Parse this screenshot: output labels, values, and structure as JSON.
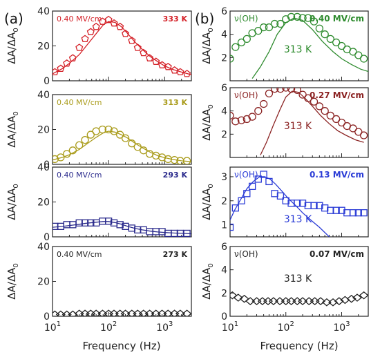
{
  "panel_labels": [
    "(a)",
    "(b)"
  ],
  "xlabel": "Frequency (Hz)",
  "ylabel_main": "ΔA/ΔA",
  "ylabel_sub": "0",
  "x_tick_labels": [
    {
      "base": "10",
      "exp": "1"
    },
    {
      "base": "10",
      "exp": "2"
    },
    {
      "base": "10",
      "exp": "3"
    }
  ],
  "chart_data": [
    {
      "type": "scatter",
      "column": "a",
      "row": 0,
      "marker": "pentagon",
      "color": "#d42027",
      "xscale": "log",
      "xlim": [
        10,
        3000
      ],
      "ylim": [
        0,
        40
      ],
      "yticks": [
        0,
        20,
        40
      ],
      "label_left": "0.40 MV/cm",
      "label_right": "333 K",
      "series": [
        {
          "kind": "points",
          "x": [
            11,
            14,
            18,
            23,
            30,
            38,
            48,
            60,
            78,
            100,
            125,
            160,
            200,
            260,
            330,
            420,
            540,
            700,
            900,
            1150,
            1500,
            1900,
            2500
          ],
          "y": [
            5,
            7,
            10,
            13,
            19,
            24,
            28,
            31,
            34,
            35,
            33,
            31,
            27,
            23,
            19,
            16,
            13,
            11,
            9,
            8,
            6,
            5,
            4
          ]
        },
        {
          "kind": "fit",
          "x": [
            10,
            15,
            20,
            30,
            40,
            60,
            80,
            100,
            130,
            170,
            220,
            300,
            400,
            550,
            750,
            1000,
            1400,
            2000,
            3000
          ],
          "y": [
            4,
            7,
            10,
            15,
            20,
            27,
            32,
            34,
            33.5,
            31,
            27,
            22,
            18,
            14,
            11,
            8.5,
            6.5,
            5,
            3.5
          ]
        }
      ]
    },
    {
      "type": "scatter",
      "column": "a",
      "row": 1,
      "marker": "circle",
      "color": "#a99b1a",
      "xscale": "log",
      "xlim": [
        10,
        3000
      ],
      "ylim": [
        0,
        40
      ],
      "yticks": [
        0,
        20,
        40
      ],
      "label_left": "0.40 MV/cm",
      "label_right": "313 K",
      "series": [
        {
          "kind": "points",
          "x": [
            11,
            14,
            18,
            23,
            30,
            38,
            48,
            60,
            78,
            100,
            125,
            160,
            200,
            260,
            330,
            420,
            540,
            700,
            900,
            1150,
            1500,
            1900,
            2500
          ],
          "y": [
            3,
            4,
            6,
            8,
            11,
            14,
            17,
            19,
            20,
            20,
            19,
            17,
            15,
            12,
            10,
            8,
            6,
            5,
            4,
            3,
            2.5,
            2,
            2
          ]
        },
        {
          "kind": "fit",
          "x": [
            10,
            15,
            20,
            30,
            40,
            60,
            80,
            100,
            130,
            170,
            220,
            300,
            400,
            550,
            750,
            1000,
            1400,
            2000,
            3000
          ],
          "y": [
            2.5,
            4,
            5.5,
            8.5,
            11.5,
            15.5,
            18,
            19,
            18.5,
            17,
            15,
            12,
            9.5,
            7,
            5,
            3.8,
            2.8,
            2,
            1.5
          ]
        }
      ]
    },
    {
      "type": "scatter",
      "column": "a",
      "row": 2,
      "marker": "square",
      "color": "#2a2a8c",
      "xscale": "log",
      "xlim": [
        10,
        3000
      ],
      "ylim": [
        0,
        40
      ],
      "yticks": [
        0,
        20,
        40
      ],
      "label_left": "0.40 MV/cm",
      "label_right": "293 K",
      "series": [
        {
          "kind": "points",
          "x": [
            11,
            14,
            18,
            23,
            30,
            38,
            48,
            60,
            78,
            100,
            125,
            160,
            200,
            260,
            330,
            420,
            540,
            700,
            900,
            1150,
            1500,
            1900,
            2500
          ],
          "y": [
            6,
            6,
            7,
            7,
            8,
            8,
            8,
            8,
            9,
            9,
            8,
            7,
            6,
            5,
            4,
            4,
            3,
            3,
            3,
            2,
            2,
            2,
            2
          ]
        },
        {
          "kind": "fit",
          "x": [
            10,
            15,
            20,
            30,
            40,
            60,
            80,
            100,
            130,
            170,
            220,
            300,
            400,
            550,
            750,
            1000,
            1400,
            2000,
            3000
          ],
          "y": [
            5.5,
            6,
            6.5,
            7.2,
            7.8,
            8.4,
            8.8,
            8.8,
            8.2,
            7.2,
            6,
            4.8,
            4,
            3.3,
            2.8,
            2.5,
            2.2,
            2,
            1.8
          ]
        }
      ]
    },
    {
      "type": "scatter",
      "column": "a",
      "row": 3,
      "marker": "diamond",
      "color": "#222222",
      "xscale": "log",
      "xlim": [
        10,
        3000
      ],
      "ylim": [
        0,
        40
      ],
      "yticks": [
        0,
        20,
        40
      ],
      "label_left": "0.40 MV/cm",
      "label_right": "273 K",
      "series": [
        {
          "kind": "points",
          "x": [
            11,
            14,
            18,
            23,
            30,
            38,
            48,
            60,
            78,
            100,
            125,
            160,
            200,
            260,
            330,
            420,
            540,
            700,
            900,
            1150,
            1500,
            1900,
            2500
          ],
          "y": [
            1,
            1,
            1,
            1,
            1.5,
            1.5,
            1.5,
            1.5,
            1.5,
            1.5,
            1.5,
            1.5,
            1.5,
            1.5,
            1.5,
            1.5,
            1.5,
            1.5,
            1.5,
            1.5,
            1.5,
            1.5,
            1.5
          ]
        }
      ]
    },
    {
      "type": "scatter",
      "column": "b",
      "row": 0,
      "marker": "circle",
      "color": "#2e8b2e",
      "xscale": "log",
      "xlim": [
        10,
        3000
      ],
      "ylim": [
        0,
        6
      ],
      "yticks": [
        2,
        4,
        6
      ],
      "label_left": "ν(OH)",
      "label_right": "0.40 MV/cm",
      "label_center": "313 K",
      "series": [
        {
          "kind": "points",
          "x": [
            10,
            12.5,
            16,
            20,
            25,
            32,
            40,
            50,
            63,
            80,
            100,
            125,
            160,
            200,
            250,
            320,
            400,
            500,
            630,
            800,
            1000,
            1250,
            1600,
            2000,
            2500
          ],
          "y": [
            1.9,
            2.9,
            3.3,
            3.6,
            4.1,
            4.3,
            4.6,
            4.6,
            4.9,
            4.9,
            5.3,
            5.5,
            5.5,
            5.4,
            5.4,
            5.1,
            4.5,
            4.0,
            3.6,
            3.3,
            3.0,
            2.7,
            2.5,
            2.2,
            1.9
          ]
        },
        {
          "kind": "fit",
          "x": [
            25,
            35,
            50,
            70,
            100,
            140,
            200,
            300,
            450,
            700,
            1000,
            1500,
            2200,
            3000
          ],
          "y": [
            0.2,
            1.2,
            2.5,
            4.0,
            5.0,
            5.4,
            5.2,
            4.4,
            3.4,
            2.5,
            1.9,
            1.4,
            1.0,
            0.8
          ]
        }
      ]
    },
    {
      "type": "scatter",
      "column": "b",
      "row": 1,
      "marker": "circle",
      "color": "#8b2323",
      "xscale": "log",
      "xlim": [
        10,
        3000
      ],
      "ylim": [
        0,
        6
      ],
      "yticks": [
        2,
        4,
        6
      ],
      "label_left": "ν(OH)",
      "label_right": "0.27 MV/cm",
      "label_center": "313 K",
      "series": [
        {
          "kind": "points",
          "x": [
            10,
            12.5,
            16,
            20,
            25,
            32,
            40,
            50,
            63,
            80,
            100,
            125,
            160,
            200,
            250,
            320,
            400,
            500,
            630,
            800,
            1000,
            1250,
            1600,
            2000,
            2500
          ],
          "y": [
            3.6,
            3.1,
            3.2,
            3.3,
            3.5,
            4.0,
            4.6,
            5.5,
            5.9,
            5.9,
            6.0,
            5.9,
            5.8,
            5.4,
            5.1,
            4.8,
            4.4,
            4.0,
            3.6,
            3.3,
            3.0,
            2.7,
            2.5,
            2.2,
            1.9
          ]
        },
        {
          "kind": "fit",
          "x": [
            35,
            45,
            60,
            80,
            100,
            130,
            170,
            220,
            300,
            420,
            600,
            850,
            1200,
            1800,
            2500
          ],
          "y": [
            0.2,
            1.3,
            2.8,
            4.2,
            5.2,
            5.7,
            5.6,
            5.1,
            4.4,
            3.6,
            2.9,
            2.3,
            1.9,
            1.5,
            1.3
          ]
        }
      ]
    },
    {
      "type": "scatter",
      "column": "b",
      "row": 2,
      "marker": "square",
      "color": "#2a3bd6",
      "xscale": "log",
      "xlim": [
        10,
        3000
      ],
      "ylim": [
        0.5,
        3.4
      ],
      "yticks": [
        1,
        2,
        3
      ],
      "label_left": "ν(OH)",
      "label_right": "0.13 MV/cm",
      "label_center": "313 K",
      "series": [
        {
          "kind": "points",
          "x": [
            10,
            12.5,
            16,
            20,
            25,
            32,
            40,
            50,
            63,
            80,
            100,
            125,
            160,
            200,
            250,
            320,
            400,
            500,
            630,
            800,
            1000,
            1250,
            1600,
            2000,
            2500
          ],
          "y": [
            0.9,
            1.7,
            2.0,
            2.3,
            2.6,
            2.9,
            3.1,
            2.8,
            2.3,
            2.2,
            2.0,
            1.9,
            1.9,
            1.9,
            1.8,
            1.8,
            1.8,
            1.7,
            1.6,
            1.6,
            1.6,
            1.5,
            1.5,
            1.5,
            1.5
          ]
        },
        {
          "kind": "fit",
          "x": [
            10,
            12,
            15,
            20,
            26,
            34,
            42,
            52,
            65,
            85,
            110,
            150,
            200,
            280,
            400,
            600
          ],
          "y": [
            1.2,
            1.6,
            2.0,
            2.5,
            2.8,
            3.0,
            3.0,
            2.9,
            2.7,
            2.4,
            2.1,
            1.8,
            1.5,
            1.2,
            0.9,
            0.5
          ]
        }
      ]
    },
    {
      "type": "scatter",
      "column": "b",
      "row": 3,
      "marker": "diamond",
      "color": "#222222",
      "xscale": "log",
      "xlim": [
        10,
        3000
      ],
      "ylim": [
        0,
        6
      ],
      "yticks": [
        0,
        2,
        4,
        6
      ],
      "label_left": "ν(OH)",
      "label_right": "0.07 MV/cm",
      "label_center": "313 K",
      "series": [
        {
          "kind": "points",
          "x": [
            11,
            14,
            18,
            23,
            30,
            38,
            48,
            60,
            78,
            100,
            125,
            160,
            200,
            260,
            330,
            420,
            540,
            700,
            900,
            1150,
            1500,
            1900,
            2500
          ],
          "y": [
            1.8,
            1.6,
            1.5,
            1.3,
            1.3,
            1.3,
            1.3,
            1.3,
            1.3,
            1.3,
            1.3,
            1.3,
            1.3,
            1.3,
            1.3,
            1.3,
            1.2,
            1.2,
            1.3,
            1.4,
            1.5,
            1.6,
            1.8
          ]
        }
      ]
    }
  ]
}
